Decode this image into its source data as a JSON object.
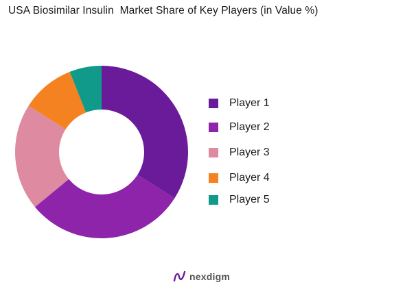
{
  "chart_data": {
    "type": "pie",
    "title": "USA Biosimilar Insulin  Market Share of Key Players (in Value %)",
    "categories": [
      "Player 1",
      "Player 2",
      "Player 3",
      "Player 4",
      "Player 5"
    ],
    "values": [
      34,
      30,
      20,
      10,
      6
    ],
    "colors": [
      "#6a1b9a",
      "#8e24aa",
      "#de8aa0",
      "#f58220",
      "#0f9a8a"
    ],
    "donut": true,
    "legend_position": "right"
  },
  "footer": {
    "brand": "nexdigm"
  }
}
